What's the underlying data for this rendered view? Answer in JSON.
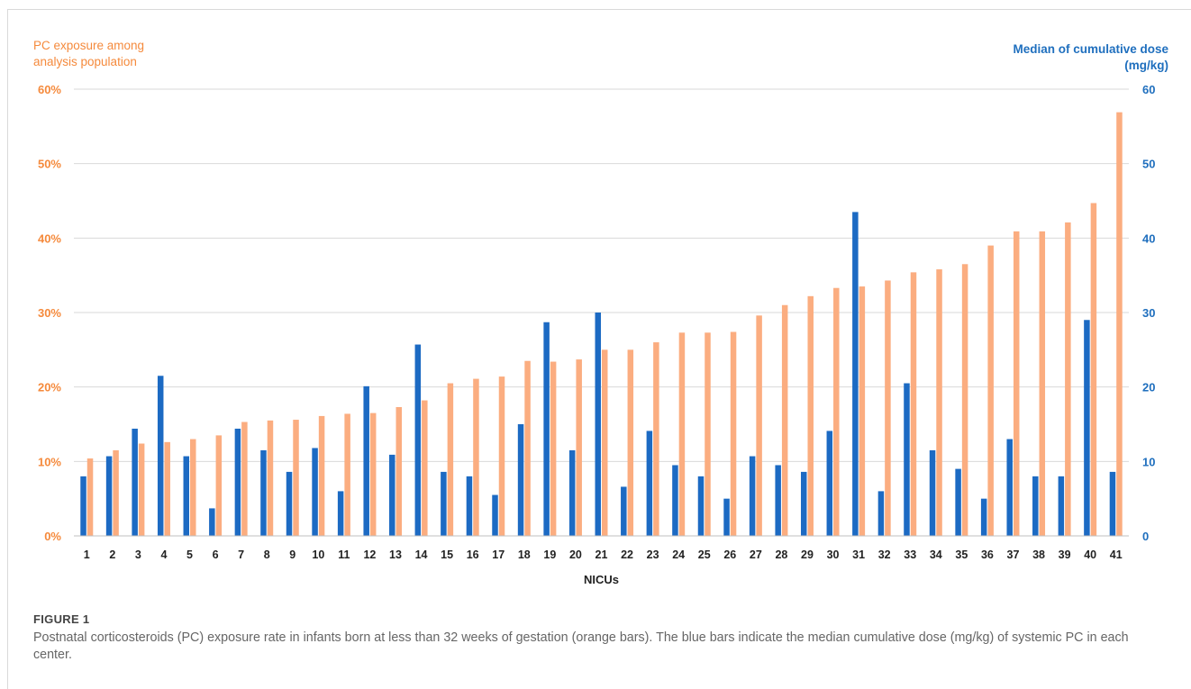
{
  "chart_data": {
    "type": "bar",
    "xlabel": "NICUs",
    "categories": [
      "1",
      "2",
      "3",
      "4",
      "5",
      "6",
      "7",
      "8",
      "9",
      "10",
      "11",
      "12",
      "13",
      "14",
      "15",
      "16",
      "17",
      "18",
      "19",
      "20",
      "21",
      "22",
      "23",
      "24",
      "25",
      "26",
      "27",
      "28",
      "29",
      "30",
      "31",
      "32",
      "33",
      "34",
      "35",
      "36",
      "37",
      "38",
      "39",
      "40",
      "41"
    ],
    "y_left": {
      "label": "PC exposure among analysis population",
      "ticks": [
        "0%",
        "10%",
        "20%",
        "30%",
        "40%",
        "50%",
        "60%"
      ],
      "range": [
        0,
        60
      ],
      "color": "#f58a3c"
    },
    "y_right": {
      "label": "Median of cumulative dose (mg/kg)",
      "ticks": [
        "0",
        "10",
        "20",
        "30",
        "40",
        "50",
        "60"
      ],
      "range": [
        0,
        60
      ],
      "color": "#1f6fbe"
    },
    "grid": true,
    "series": [
      {
        "axis": "right",
        "color": "#1c6ac3",
        "values": [
          8,
          10.7,
          14.4,
          21.5,
          10.7,
          3.7,
          14.4,
          11.5,
          8.6,
          11.8,
          6,
          20.1,
          10.9,
          25.7,
          8.6,
          8,
          5.5,
          15,
          28.7,
          11.5,
          30,
          6.6,
          14.1,
          9.5,
          8,
          5,
          10.7,
          9.5,
          8.6,
          14.1,
          43.5,
          6,
          20.5,
          11.5,
          9,
          5,
          13,
          8,
          8,
          29,
          8.6
        ]
      },
      {
        "axis": "left",
        "color": "#fbad80",
        "values": [
          10.4,
          11.5,
          12.4,
          12.6,
          13,
          13.5,
          15.3,
          15.5,
          15.6,
          16.1,
          16.4,
          16.5,
          17.3,
          18.2,
          20.5,
          21.1,
          21.4,
          23.5,
          23.4,
          23.7,
          25,
          25,
          26,
          27.3,
          27.3,
          27.4,
          29.6,
          31,
          32.2,
          33.3,
          33.5,
          34.3,
          35.4,
          35.8,
          36.5,
          39,
          40.9,
          40.9,
          42.1,
          44.7,
          56.9
        ]
      }
    ]
  },
  "figure_label": "FIGURE 1",
  "caption": "Postnatal corticosteroids (PC) exposure rate in infants born at less than 32 weeks of gestation (orange bars). The blue bars indicate the median cumulative dose (mg/kg) of systemic PC in each center."
}
